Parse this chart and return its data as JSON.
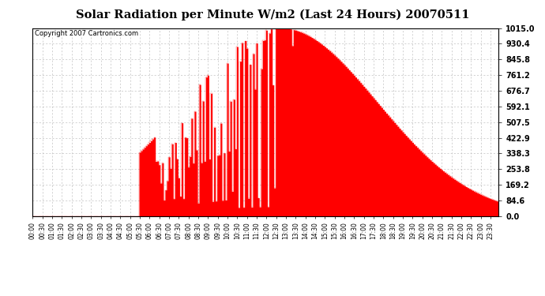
{
  "title": "Solar Radiation per Minute W/m2 (Last 24 Hours) 20070511",
  "copyright": "Copyright 2007 Cartronics.com",
  "background_color": "#ffffff",
  "fill_color": "#ff0000",
  "line_color": "#ff0000",
  "dashed_line_color": "#ff0000",
  "grid_color": "#c0c0c0",
  "ylim": [
    0.0,
    1015.0
  ],
  "yticks": [
    0.0,
    84.6,
    169.2,
    253.8,
    338.3,
    422.9,
    507.5,
    592.1,
    676.7,
    761.2,
    845.8,
    930.4,
    1015.0
  ],
  "ylabel_values": [
    "0.0",
    "84.6",
    "169.2",
    "253.8",
    "338.3",
    "422.9",
    "507.5",
    "592.1",
    "676.7",
    "761.2",
    "845.8",
    "930.4",
    "1015.0"
  ],
  "num_points": 288,
  "sunrise_idx": 66,
  "sunset_idx": 240,
  "peak_idx": 147,
  "second_peak_idx": 161
}
